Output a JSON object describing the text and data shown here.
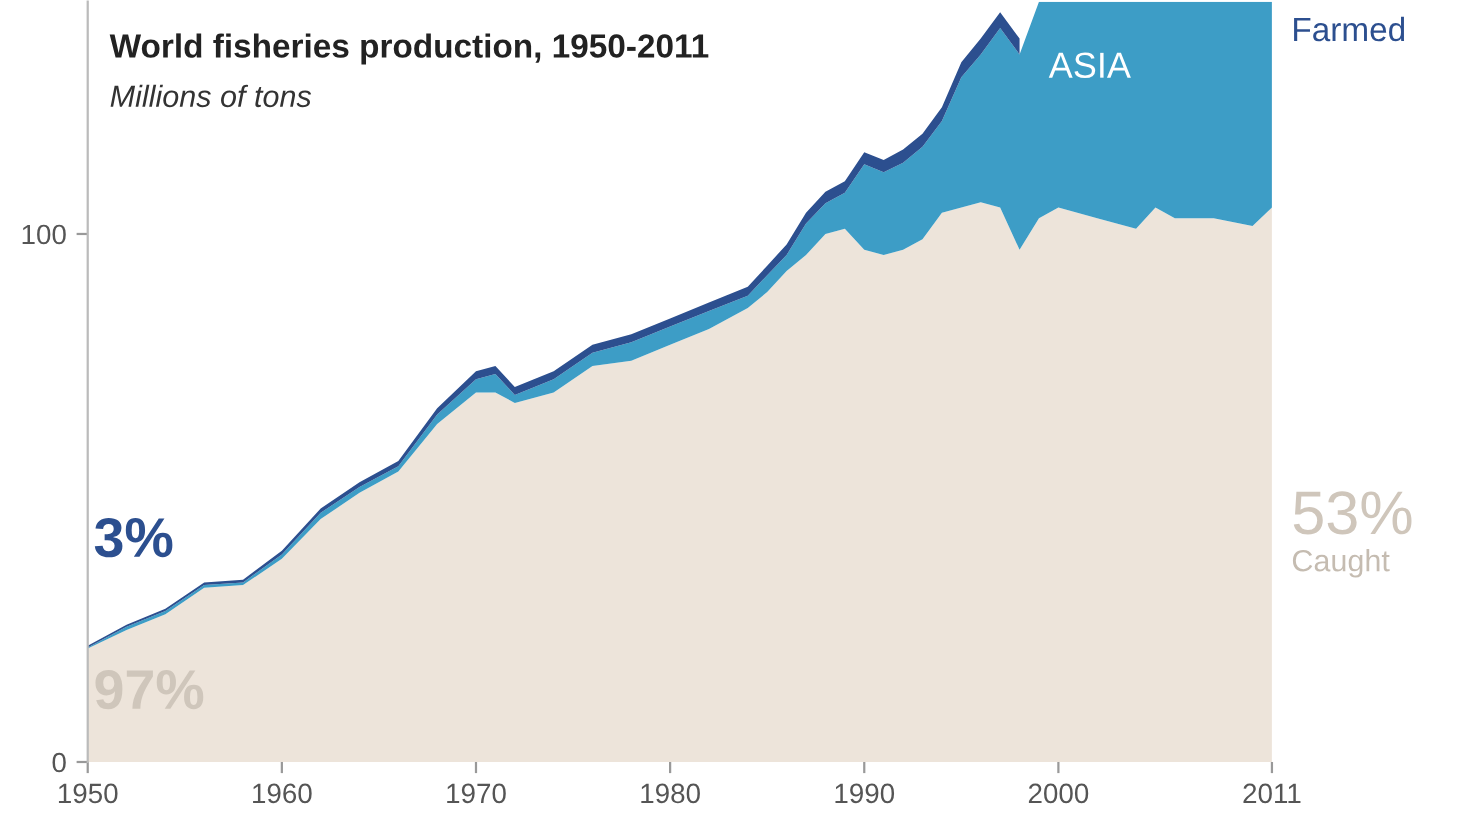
{
  "chart_data": {
    "type": "area",
    "stacked": true,
    "title": "World fisheries production, 1950-2011",
    "subtitle": "Millions of tons",
    "x": [
      1950,
      1952,
      1954,
      1956,
      1958,
      1960,
      1962,
      1964,
      1966,
      1968,
      1970,
      1971,
      1972,
      1974,
      1976,
      1978,
      1980,
      1982,
      1984,
      1985,
      1986,
      1987,
      1988,
      1989,
      1990,
      1991,
      1992,
      1993,
      1994,
      1995,
      1996,
      1997,
      1998,
      1999,
      2000,
      2002,
      2004,
      2005,
      2006,
      2008,
      2010,
      2011
    ],
    "series": [
      {
        "name": "Caught",
        "color": "#ede4da",
        "values": [
          21.5,
          25,
          28,
          33,
          33.5,
          38.5,
          46,
          51,
          55,
          64,
          70,
          70,
          68,
          70,
          75,
          76,
          79,
          82,
          86,
          89,
          93,
          96,
          100,
          101,
          97,
          96,
          97,
          99,
          104,
          105,
          106,
          105,
          97,
          103,
          105,
          103,
          101,
          105,
          103,
          103,
          101.5,
          105
        ]
      },
      {
        "name": "ASIA",
        "color": "#3d9dc6",
        "values": [
          0.2,
          0.6,
          0.6,
          0.5,
          0.5,
          0.8,
          1.2,
          1.1,
          1.0,
          1.8,
          2.5,
          3.5,
          1.5,
          2.5,
          2.5,
          3.5,
          3.5,
          3.4,
          2.3,
          3.2,
          3,
          6,
          5.8,
          6.8,
          16.2,
          15.7,
          16.5,
          17.5,
          17.4,
          24.7,
          28,
          34,
          37,
          41,
          39,
          41,
          43,
          39,
          41,
          41,
          42.5,
          39
        ]
      },
      {
        "name": "Farmed",
        "color": "#2c4f8f",
        "values": [
          0.3,
          0.4,
          0.4,
          0.5,
          0.5,
          0.7,
          0.8,
          0.9,
          1,
          1.2,
          1.5,
          1.5,
          1.5,
          1.5,
          1.5,
          1.5,
          1.5,
          1.6,
          1.7,
          1.8,
          2,
          2,
          2.2,
          2.2,
          2.3,
          2.3,
          2.5,
          2.5,
          2.6,
          2.8,
          3,
          3,
          3,
          null,
          null,
          null,
          null,
          null,
          null,
          null,
          null,
          null
        ]
      }
    ],
    "xlim": [
      1950,
      2011
    ],
    "xticks": [
      1950,
      1960,
      1970,
      1980,
      1990,
      2000,
      2011
    ],
    "ylim": [
      0,
      144
    ],
    "yticks": [
      0,
      100
    ],
    "annotations": [
      "3%",
      "97%",
      "53%"
    ],
    "grid": false,
    "legend": false
  }
}
